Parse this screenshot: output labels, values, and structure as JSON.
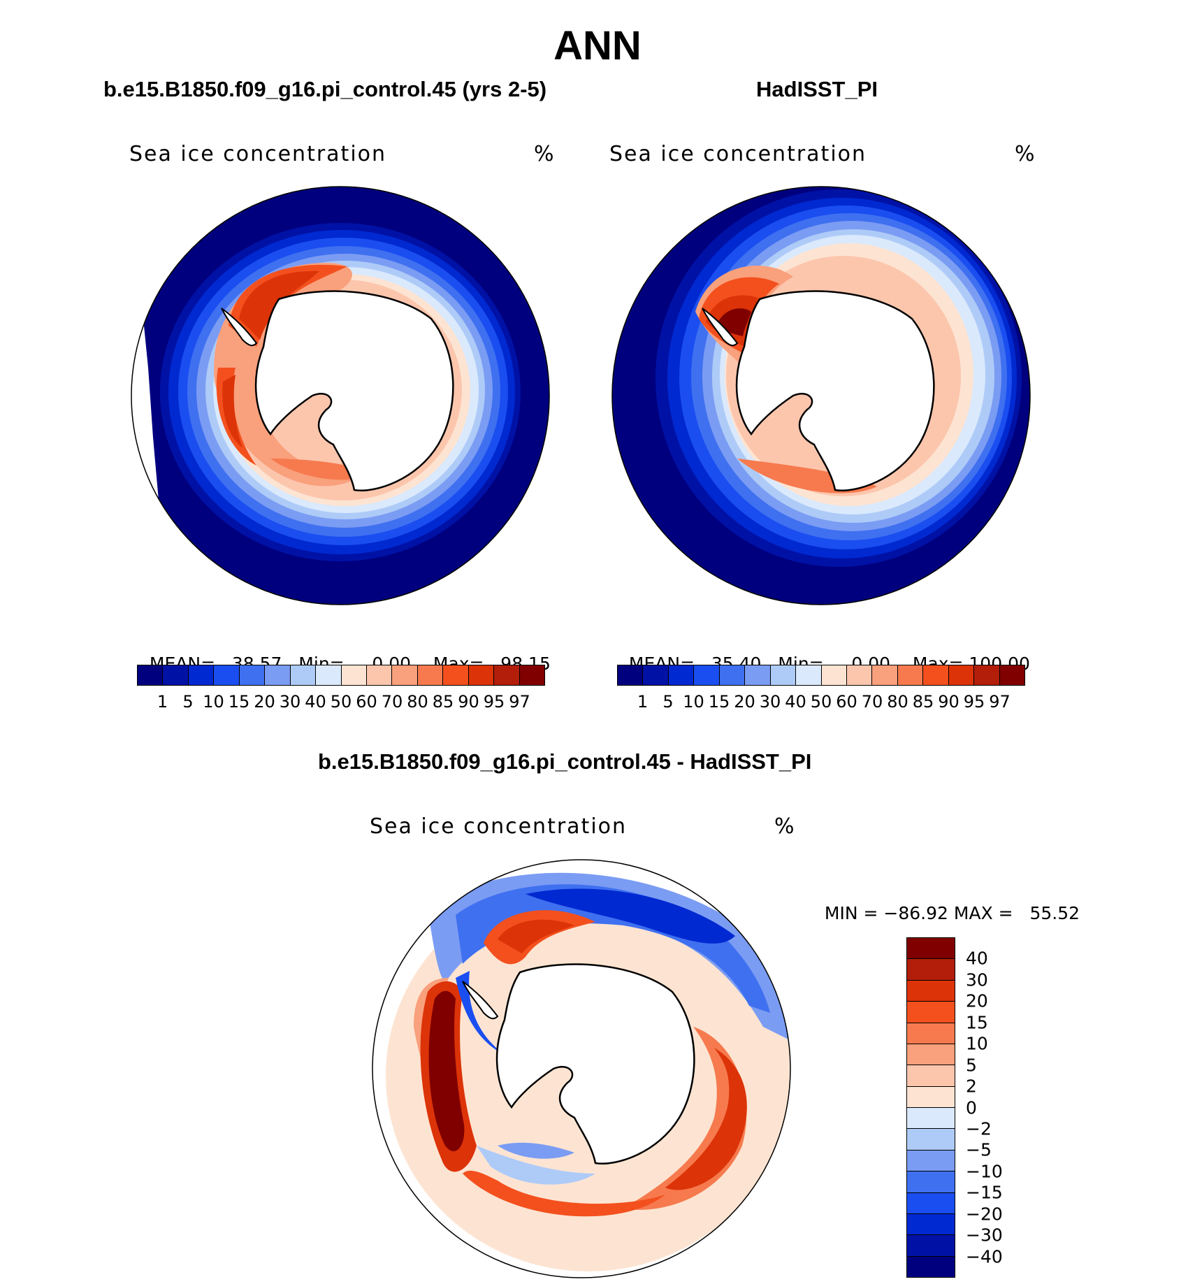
{
  "title": "ANN",
  "panels": {
    "model": {
      "case_title": "b.e15.B1850.f09_g16.pi_control.45 (yrs 2-5)",
      "var_label": "Sea ice concentration",
      "units": "%",
      "stats": {
        "mean_label": "MEAN=",
        "mean": "38.57",
        "min_label": "Min=",
        "min": "0.00",
        "max_label": "Max=",
        "max": "98.15"
      }
    },
    "obs": {
      "case_title": "HadISST_PI",
      "var_label": "Sea ice concentration",
      "units": "%",
      "stats": {
        "mean_label": "MEAN=",
        "mean": "35.40",
        "min_label": "Min=",
        "min": "0.00",
        "max_label": "Max=",
        "max": "100.00"
      }
    },
    "diff": {
      "case_title": "b.e15.B1850.f09_g16.pi_control.45 - HadISST_PI",
      "var_label": "Sea ice concentration",
      "units": "%",
      "stats": {
        "min_label": "MIN =",
        "min": "−86.92",
        "max_label": "MAX =",
        "max": "55.52"
      }
    }
  },
  "colorbar_abs": {
    "ticks": [
      "1",
      "5",
      "10",
      "15",
      "20",
      "30",
      "40",
      "50",
      "60",
      "70",
      "80",
      "85",
      "90",
      "95",
      "97"
    ],
    "colors": [
      "#00007f",
      "#0012a6",
      "#0029d1",
      "#1a4ef0",
      "#3f70f0",
      "#7b9cf3",
      "#aecbf8",
      "#dae9fc",
      "#fde4d2",
      "#fcc6ad",
      "#f9a07c",
      "#f67a4e",
      "#f3501e",
      "#dc3308",
      "#b21e0a",
      "#800000"
    ]
  },
  "colorbar_diff": {
    "ticks": [
      "40",
      "30",
      "20",
      "15",
      "10",
      "5",
      "2",
      "0",
      "−2",
      "−5",
      "−10",
      "−15",
      "−20",
      "−30",
      "−40"
    ],
    "colors": [
      "#800000",
      "#b21e0a",
      "#dc3308",
      "#f3501e",
      "#f67a4e",
      "#f9a07c",
      "#fcc6ad",
      "#fde4d2",
      "#dae9fc",
      "#aecbf8",
      "#7b9cf3",
      "#3f70f0",
      "#1a4ef0",
      "#0029d1",
      "#0012a6",
      "#00007f"
    ]
  }
}
